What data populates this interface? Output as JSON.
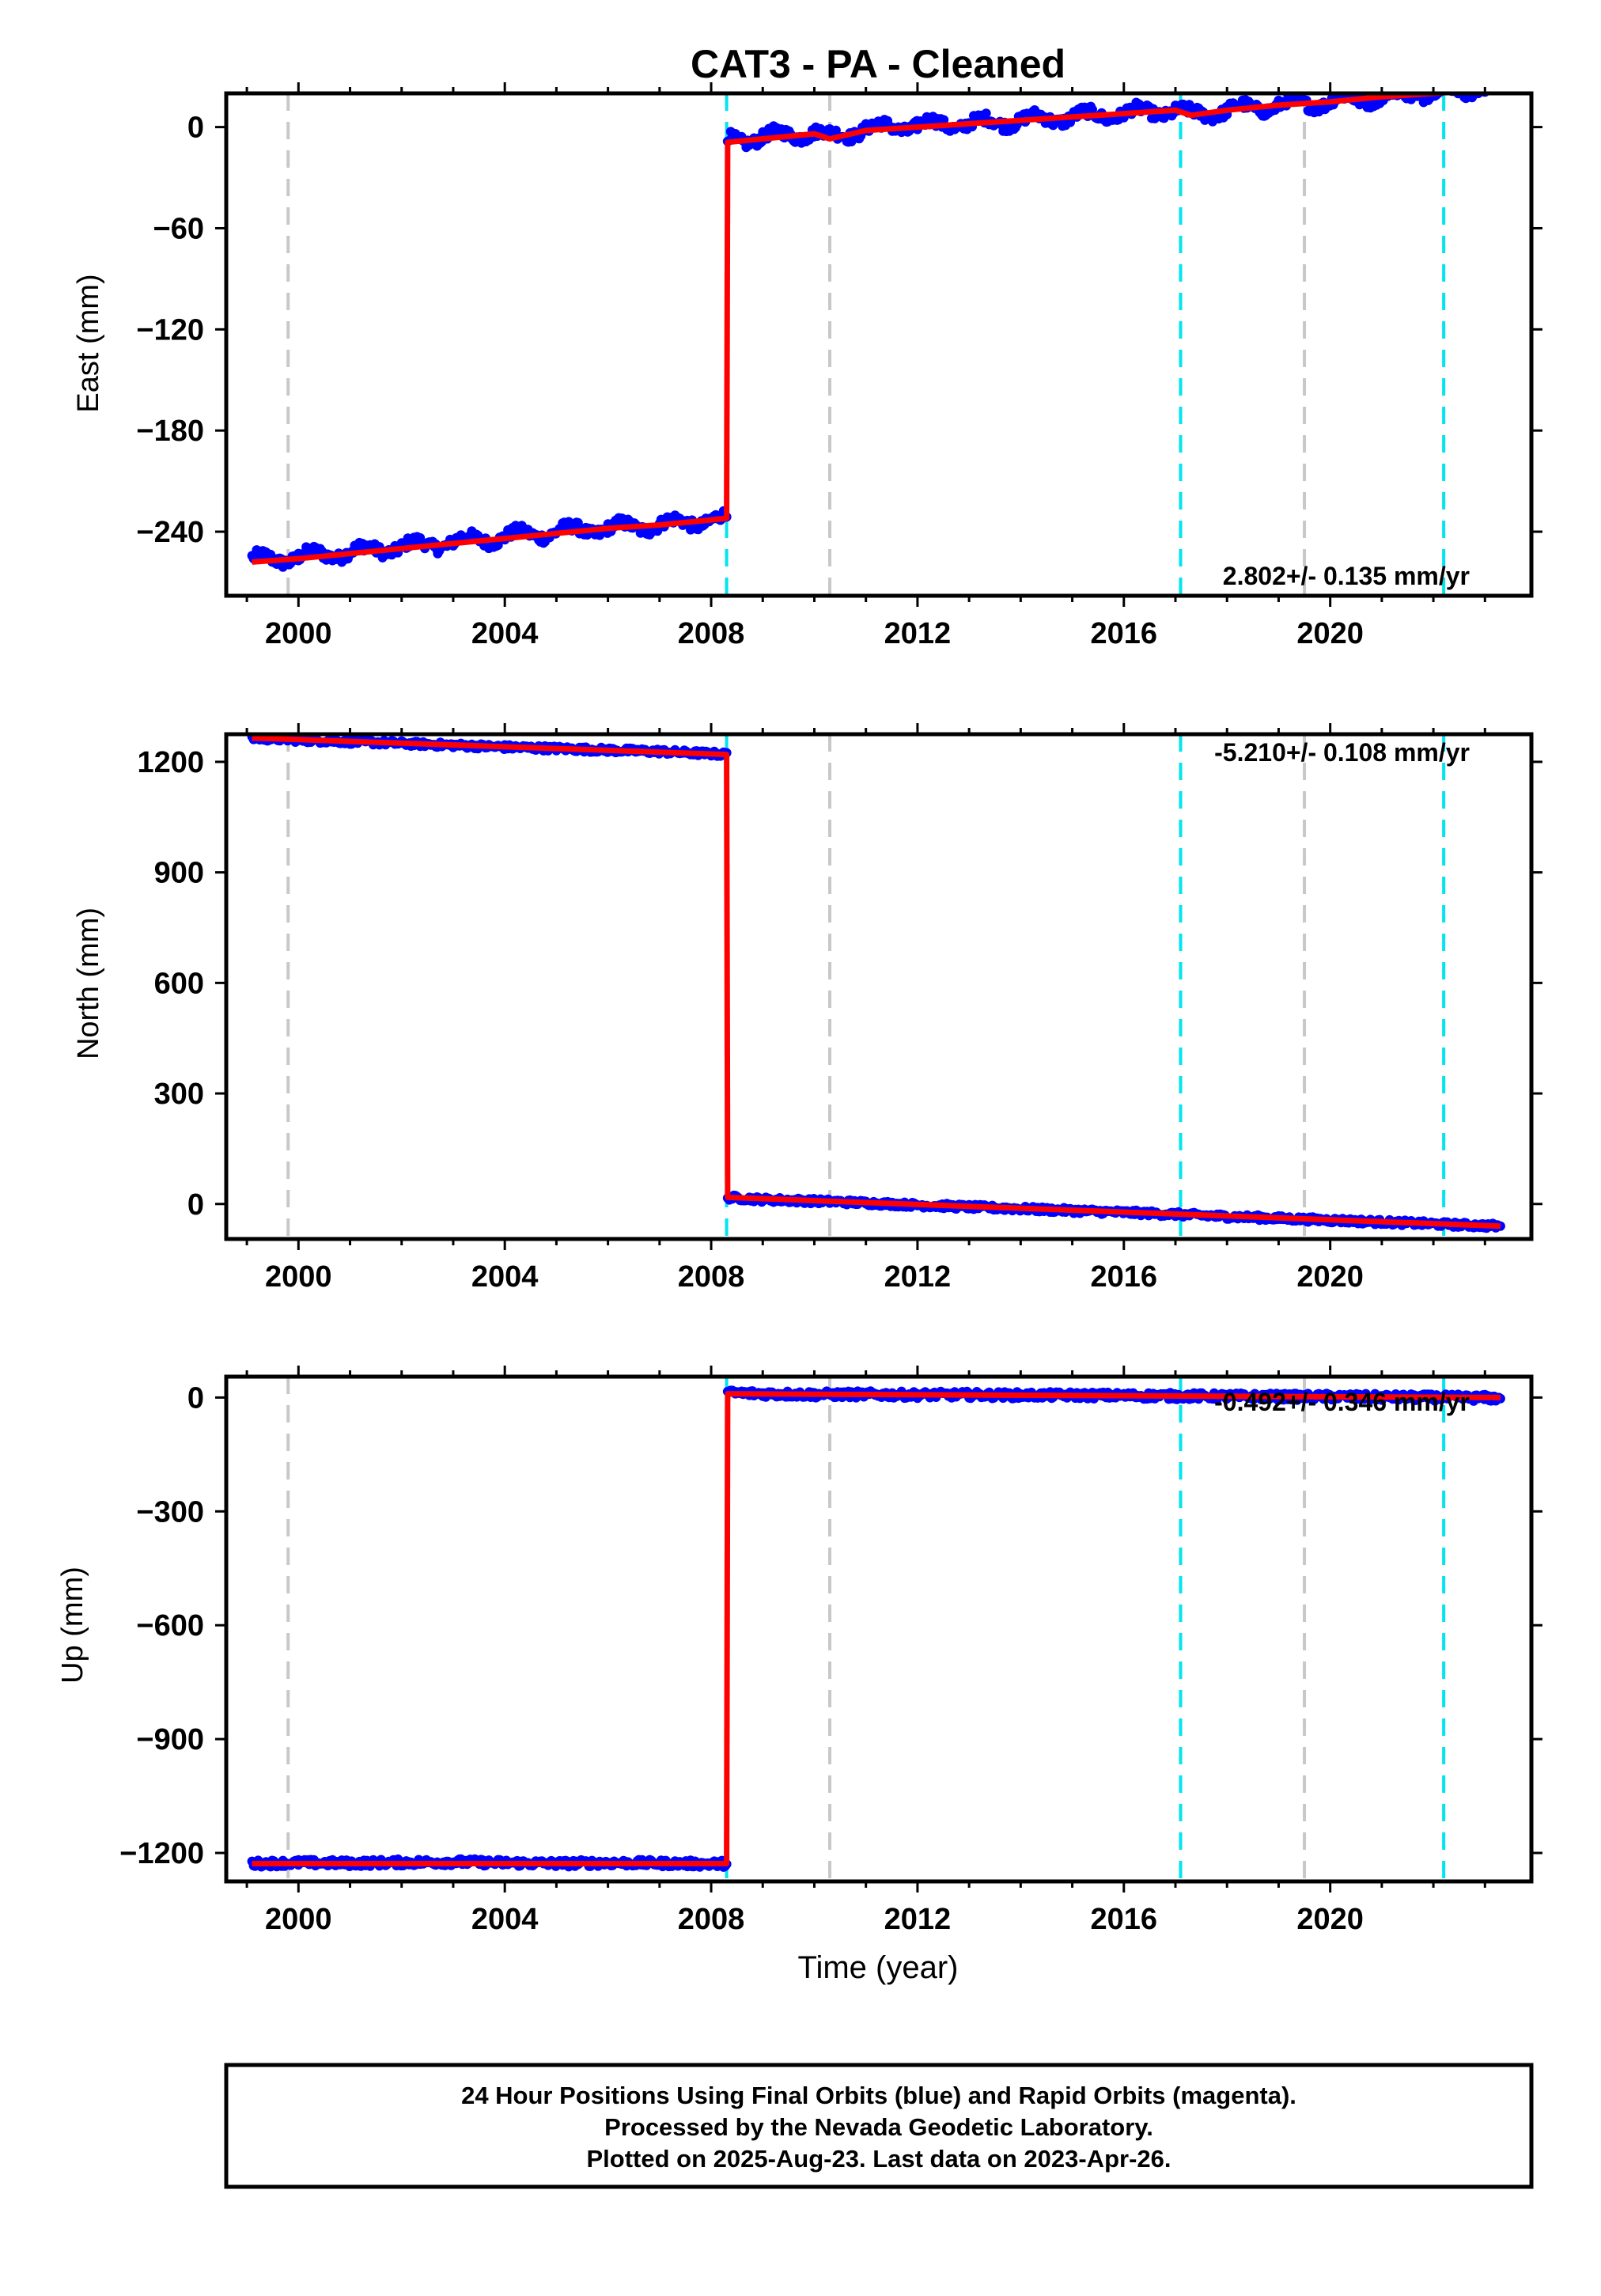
{
  "title": "CAT3  - PA - Cleaned",
  "xlabel": "Time (year)",
  "footer": {
    "line1": "24 Hour Positions Using Final Orbits (blue) and Rapid Orbits (magenta).",
    "line2": "Processed by the Nevada Geodetic Laboratory.",
    "line3": "Plotted on 2025-Aug-23. Last data on 2023-Apr-26."
  },
  "chart_data": [
    {
      "type": "scatter",
      "component": "east",
      "ylabel": "East (mm)",
      "xlim": [
        1998.6,
        2023.9
      ],
      "ylim": [
        -278,
        20
      ],
      "x_ticks": [
        2000,
        2004,
        2008,
        2012,
        2016,
        2020
      ],
      "y_ticks": [
        0,
        -60,
        -120,
        -180,
        -240
      ],
      "y_tick_labels": [
        "0",
        "−60",
        "−120",
        "−180",
        "−240"
      ],
      "rate_label": "2.802+/- 0.135 mm/yr",
      "rate_position": "bottom-right",
      "series": [
        {
          "role": "observations",
          "color": "#0000ff",
          "x": [
            1999.1,
            2000.0,
            2001.0,
            2002.0,
            2002.7,
            2003.0,
            2004.0,
            2005.0,
            2006.0,
            2007.0,
            2008.0,
            2008.3,
            2008.32,
            2009.0,
            2010.0,
            2010.3,
            2011.0,
            2012.0,
            2013.0,
            2014.0,
            2015.0,
            2016.0,
            2017.0,
            2017.3,
            2018.0,
            2019.0,
            2020.0,
            2021.0,
            2022.0,
            2023.0,
            2023.3
          ],
          "y": [
            -257,
            -255,
            -252,
            -249,
            -247,
            -246,
            -243,
            -240,
            -238,
            -236,
            -233,
            -233,
            -8,
            -6,
            -3,
            -6,
            -1,
            1,
            2,
            4,
            6,
            8,
            10,
            7,
            10,
            13,
            15,
            18,
            21,
            23,
            24
          ]
        },
        {
          "role": "model",
          "color": "#ff0000",
          "x": [
            1999.1,
            2000.0,
            2001.0,
            2002.0,
            2003.0,
            2004.0,
            2005.0,
            2006.0,
            2007.0,
            2008.0,
            2008.3,
            2008.32,
            2009.0,
            2010.0,
            2010.3,
            2011.0,
            2012.0,
            2013.0,
            2014.0,
            2015.0,
            2016.0,
            2017.0,
            2017.3,
            2018.0,
            2019.0,
            2020.0,
            2021.0,
            2022.0,
            2023.0,
            2023.3
          ],
          "y": [
            -258,
            -256,
            -253,
            -250,
            -247,
            -244,
            -241,
            -238,
            -236,
            -233,
            -232,
            -9,
            -7,
            -4,
            -7,
            -2,
            0,
            2,
            4,
            6,
            8,
            10,
            7,
            10,
            13,
            15,
            18,
            20,
            22,
            23
          ]
        }
      ],
      "vlines": [
        {
          "x": 1999.8,
          "color": "#c8c8c8"
        },
        {
          "x": 2008.3,
          "color": "#00e5ee"
        },
        {
          "x": 2010.3,
          "color": "#c8c8c8"
        },
        {
          "x": 2017.1,
          "color": "#00e5ee"
        },
        {
          "x": 2019.5,
          "color": "#c8c8c8"
        },
        {
          "x": 2022.2,
          "color": "#00e5ee"
        }
      ]
    },
    {
      "type": "scatter",
      "component": "north",
      "ylabel": "North (mm)",
      "xlim": [
        1998.6,
        2023.9
      ],
      "ylim": [
        -95,
        1275
      ],
      "x_ticks": [
        2000,
        2004,
        2008,
        2012,
        2016,
        2020
      ],
      "y_ticks": [
        1200,
        900,
        600,
        300,
        0
      ],
      "y_tick_labels": [
        "1200",
        "900",
        "600",
        "300",
        "0"
      ],
      "rate_label": "-5.210+/- 0.108 mm/yr",
      "rate_position": "top-right",
      "series": [
        {
          "role": "observations",
          "color": "#0000ff",
          "x": [
            1999.1,
            2000.0,
            2001.0,
            2002.0,
            2003.0,
            2004.0,
            2005.0,
            2006.0,
            2007.0,
            2008.0,
            2008.3,
            2008.32,
            2009.0,
            2010.0,
            2011.0,
            2012.0,
            2013.0,
            2014.0,
            2015.0,
            2016.0,
            2017.0,
            2018.0,
            2019.0,
            2020.0,
            2021.0,
            2022.0,
            2023.0,
            2023.3
          ],
          "y": [
            1265,
            1260,
            1255,
            1250,
            1245,
            1240,
            1236,
            1232,
            1228,
            1222,
            1220,
            18,
            12,
            8,
            3,
            -3,
            -8,
            -13,
            -18,
            -23,
            -28,
            -34,
            -39,
            -44,
            -49,
            -54,
            -59,
            -60
          ]
        },
        {
          "role": "model",
          "color": "#ff0000",
          "x": [
            1999.1,
            2008.3,
            2008.32,
            2023.3
          ],
          "y": [
            1265,
            1220,
            18,
            -60
          ]
        }
      ],
      "vlines": [
        {
          "x": 1999.8,
          "color": "#c8c8c8"
        },
        {
          "x": 2008.3,
          "color": "#00e5ee"
        },
        {
          "x": 2010.3,
          "color": "#c8c8c8"
        },
        {
          "x": 2017.1,
          "color": "#00e5ee"
        },
        {
          "x": 2019.5,
          "color": "#c8c8c8"
        },
        {
          "x": 2022.2,
          "color": "#00e5ee"
        }
      ]
    },
    {
      "type": "scatter",
      "component": "up",
      "ylabel": "Up (mm)",
      "xlim": [
        1998.6,
        2023.9
      ],
      "ylim": [
        -1275,
        55
      ],
      "x_ticks": [
        2000,
        2004,
        2008,
        2012,
        2016,
        2020
      ],
      "y_ticks": [
        0,
        -300,
        -600,
        -900,
        -1200
      ],
      "y_tick_labels": [
        "0",
        "−300",
        "−600",
        "−900",
        "−1200"
      ],
      "rate_label": "-0.492+/- 0.346 mm/yr",
      "rate_position": "top-right",
      "series": [
        {
          "role": "observations",
          "color": "#0000ff",
          "x": [
            1999.1,
            2000.0,
            2001.0,
            2002.0,
            2003.0,
            2004.0,
            2005.0,
            2006.0,
            2007.0,
            2008.0,
            2008.3,
            2008.32,
            2009.0,
            2010.0,
            2011.0,
            2012.0,
            2013.0,
            2014.0,
            2015.0,
            2016.0,
            2017.0,
            2018.0,
            2019.0,
            2020.0,
            2021.0,
            2022.0,
            2023.0,
            2023.3
          ],
          "y": [
            -1228,
            -1226,
            -1227,
            -1225,
            -1224,
            -1226,
            -1228,
            -1226,
            -1227,
            -1229,
            -1228,
            12,
            10,
            8,
            8,
            7,
            7,
            6,
            6,
            5,
            4,
            3,
            2,
            2,
            1,
            0,
            -1,
            -2
          ]
        },
        {
          "role": "model",
          "color": "#ff0000",
          "x": [
            1999.1,
            2008.3,
            2008.32,
            2023.3
          ],
          "y": [
            -1228,
            -1228,
            10,
            0
          ]
        }
      ],
      "vlines": [
        {
          "x": 1999.8,
          "color": "#c8c8c8"
        },
        {
          "x": 2008.3,
          "color": "#00e5ee"
        },
        {
          "x": 2010.3,
          "color": "#c8c8c8"
        },
        {
          "x": 2017.1,
          "color": "#00e5ee"
        },
        {
          "x": 2019.5,
          "color": "#c8c8c8"
        },
        {
          "x": 2022.2,
          "color": "#00e5ee"
        }
      ]
    }
  ]
}
